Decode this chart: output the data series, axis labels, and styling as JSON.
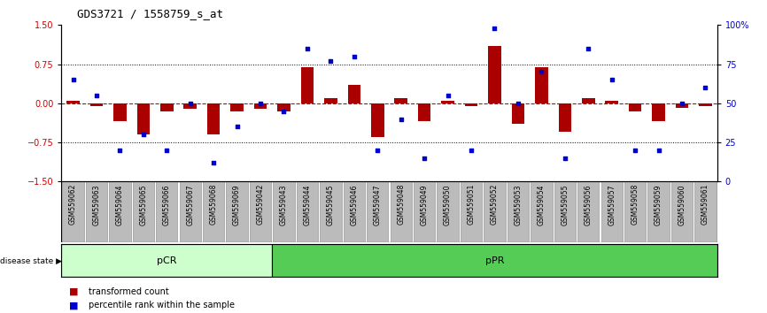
{
  "title": "GDS3721 / 1558759_s_at",
  "samples": [
    "GSM559062",
    "GSM559063",
    "GSM559064",
    "GSM559065",
    "GSM559066",
    "GSM559067",
    "GSM559068",
    "GSM559069",
    "GSM559042",
    "GSM559043",
    "GSM559044",
    "GSM559045",
    "GSM559046",
    "GSM559047",
    "GSM559048",
    "GSM559049",
    "GSM559050",
    "GSM559051",
    "GSM559052",
    "GSM559053",
    "GSM559054",
    "GSM559055",
    "GSM559056",
    "GSM559057",
    "GSM559058",
    "GSM559059",
    "GSM559060",
    "GSM559061"
  ],
  "bar_values": [
    0.05,
    -0.05,
    -0.35,
    -0.6,
    -0.15,
    -0.1,
    -0.6,
    -0.15,
    -0.1,
    -0.15,
    0.7,
    0.1,
    0.35,
    -0.65,
    0.1,
    -0.35,
    0.05,
    -0.05,
    1.1,
    -0.4,
    0.7,
    -0.55,
    0.1,
    0.05,
    -0.15,
    -0.35,
    -0.08,
    -0.05
  ],
  "dot_values": [
    65,
    55,
    20,
    30,
    20,
    50,
    12,
    35,
    50,
    45,
    85,
    77,
    80,
    20,
    40,
    15,
    55,
    20,
    98,
    50,
    70,
    15,
    85,
    65,
    20,
    20,
    50,
    60
  ],
  "pcr_count": 9,
  "ppr_count": 19,
  "pcr_color": "#ccffcc",
  "ppr_color": "#55cc55",
  "bar_color": "#aa0000",
  "dot_color": "#0000cc",
  "ylim": [
    -1.5,
    1.5
  ],
  "y2lim": [
    0,
    100
  ],
  "yticks": [
    -1.5,
    -0.75,
    0.0,
    0.75,
    1.5
  ],
  "y2ticks": [
    0,
    25,
    50,
    75,
    100
  ],
  "hline_color": "#cc0000",
  "hline_dotted_color": "#000000",
  "tick_area_color": "#bbbbbb"
}
